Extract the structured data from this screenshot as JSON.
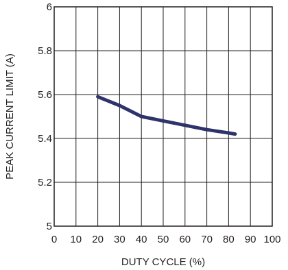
{
  "chart_data": {
    "type": "line",
    "title": "",
    "xlabel": "DUTY CYCLE (%)",
    "ylabel": "PEAK CURRENT LIMIT (A)",
    "xlim": [
      0,
      100
    ],
    "ylim": [
      5,
      6
    ],
    "x_ticks": [
      0,
      10,
      20,
      30,
      40,
      50,
      60,
      70,
      80,
      90,
      100
    ],
    "y_ticks": [
      5,
      5.2,
      5.4,
      5.6,
      5.8,
      6
    ],
    "x_tick_labels": [
      "0",
      "10",
      "20",
      "30",
      "40",
      "50",
      "60",
      "70",
      "80",
      "90",
      "100"
    ],
    "y_tick_labels": [
      "5",
      "5.2",
      "5.4",
      "5.6",
      "5.8",
      "6"
    ],
    "grid": true,
    "series": [
      {
        "color": "#2e3369",
        "x": [
          20,
          30,
          40,
          50,
          60,
          70,
          80,
          83
        ],
        "y": [
          5.59,
          5.55,
          5.5,
          5.48,
          5.46,
          5.44,
          5.425,
          5.42
        ]
      }
    ]
  }
}
